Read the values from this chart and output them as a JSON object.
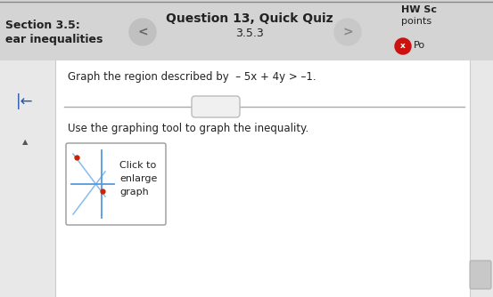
{
  "bg_color": "#d4d4d4",
  "header_bg": "#d4d4d4",
  "body_bg": "#e8e8e8",
  "content_bg": "#ffffff",
  "sidebar_bg": "#e8e8e8",
  "question_text": "Graph the region described by  – 5x + 4y > –1.",
  "instruction_text": "Use the graphing tool to graph the inequality.",
  "click_box_text": "Click to\nenlarge\ngraph",
  "header_left_line1": "Section 3.5:",
  "header_left_line2": "ear inequalities",
  "header_center_line1": "Question 13, Quick Quiz",
  "header_center_line2": "3.5.3",
  "header_right_line1": "HW Sc",
  "header_right_line2": "points",
  "header_right_line3": "Po",
  "nav_left": "<",
  "nav_right": ">",
  "nav_circle_color": "#c0c0c0",
  "nav_right_circle_color": "#c8c8c8",
  "red_badge_color": "#cc1111",
  "axis_blue": "#5599dd",
  "axis_blue_light": "#88bbee",
  "dot_red": "#cc2200",
  "slider_line_color": "#aaaaaa",
  "slider_pill_color": "#f0f0f0",
  "slider_pill_edge": "#bbbbbb",
  "scroll_color": "#c8c8c8",
  "left_icon_color": "#2255aa",
  "up_arrow_color": "#555555",
  "divider_color": "#cccccc",
  "text_color": "#222222"
}
